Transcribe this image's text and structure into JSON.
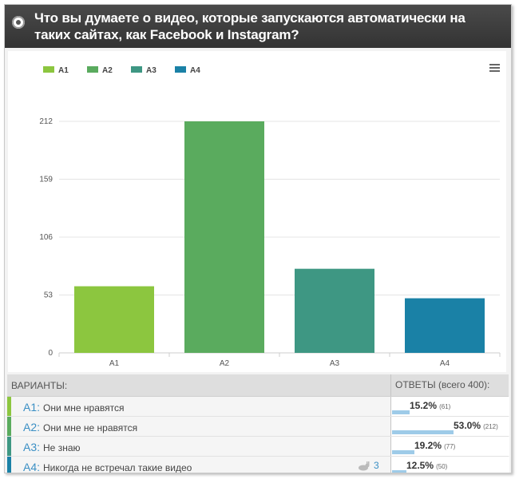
{
  "question": "Что вы думаете о видео, которые запускаются автоматически на таких сайтах, как Facebook и Instagram?",
  "legend": [
    "A1",
    "A2",
    "A3",
    "A4"
  ],
  "colors": [
    "#8cc63f",
    "#5aab5e",
    "#3e9783",
    "#1a81a6"
  ],
  "chart_data": {
    "type": "bar",
    "categories": [
      "A1",
      "A2",
      "A3",
      "A4"
    ],
    "values": [
      61,
      212,
      77,
      50
    ],
    "yticks": [
      0,
      53,
      106,
      159,
      212
    ],
    "ylim": [
      0,
      212
    ],
    "grid": true,
    "legend_position": "top-left"
  },
  "table": {
    "variants_header": "ВАРИАНТЫ:",
    "answers_header": "ОТВЕТЫ (всего 400):",
    "rows": [
      {
        "code": "A1:",
        "text": "Они мне нравятся",
        "percent": "15.2%",
        "count": "(61)",
        "share": 0.152
      },
      {
        "code": "A2:",
        "text": "Они мне не нравятся",
        "percent": "53.0%",
        "count": "(212)",
        "share": 0.53
      },
      {
        "code": "A3:",
        "text": "Не знаю",
        "percent": "19.2%",
        "count": "(77)",
        "share": 0.192
      },
      {
        "code": "A4:",
        "text": "Никогда не встречал такие видео",
        "percent": "12.5%",
        "count": "(50)",
        "share": 0.125,
        "extra": "3"
      }
    ]
  }
}
